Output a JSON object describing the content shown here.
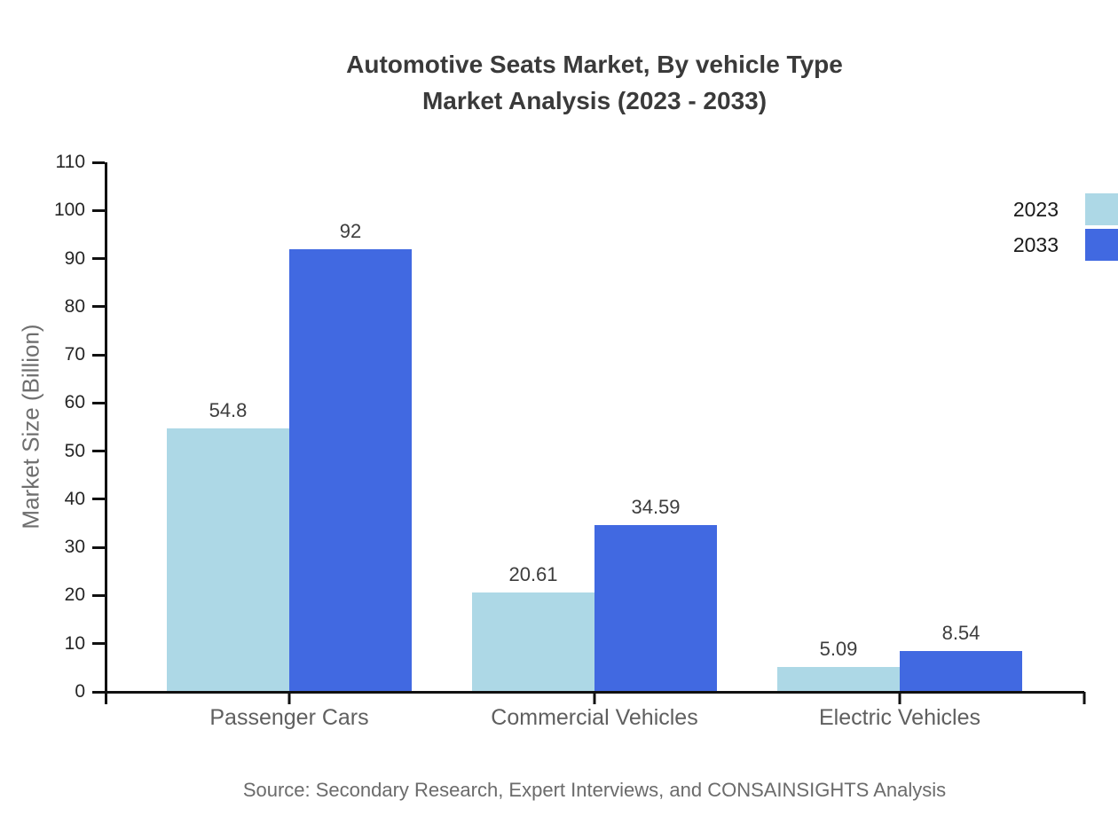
{
  "title": {
    "line1": "Automotive Seats Market, By vehicle Type",
    "line2": "Market Analysis (2023 - 2033)"
  },
  "source_note": "Source: Secondary Research, Expert Interviews, and CONSAINSIGHTS Analysis",
  "chart_data": {
    "type": "bar",
    "title": "Automotive Seats Market, By vehicle Type — Market Analysis (2023 - 2033)",
    "categories": [
      "Passenger Cars",
      "Commercial Vehicles",
      "Electric Vehicles"
    ],
    "series": [
      {
        "name": "2023",
        "color": "#ADD8E6",
        "values": [
          54.8,
          20.61,
          5.09
        ],
        "labels": [
          "54.8",
          "20.61",
          "5.09"
        ]
      },
      {
        "name": "2033",
        "color": "#4169E1",
        "values": [
          92,
          34.59,
          8.54
        ],
        "labels": [
          "92",
          "34.59",
          "8.54"
        ]
      }
    ],
    "xlabel": "",
    "ylabel": "Market Size (Billion)",
    "ylim": [
      0,
      110
    ],
    "yticks": [
      0,
      10,
      20,
      30,
      40,
      50,
      60,
      70,
      80,
      90,
      100,
      110
    ],
    "grid": false,
    "legend_position": "top-right",
    "axis_color": "#111111",
    "background_color": "#ffffff"
  }
}
